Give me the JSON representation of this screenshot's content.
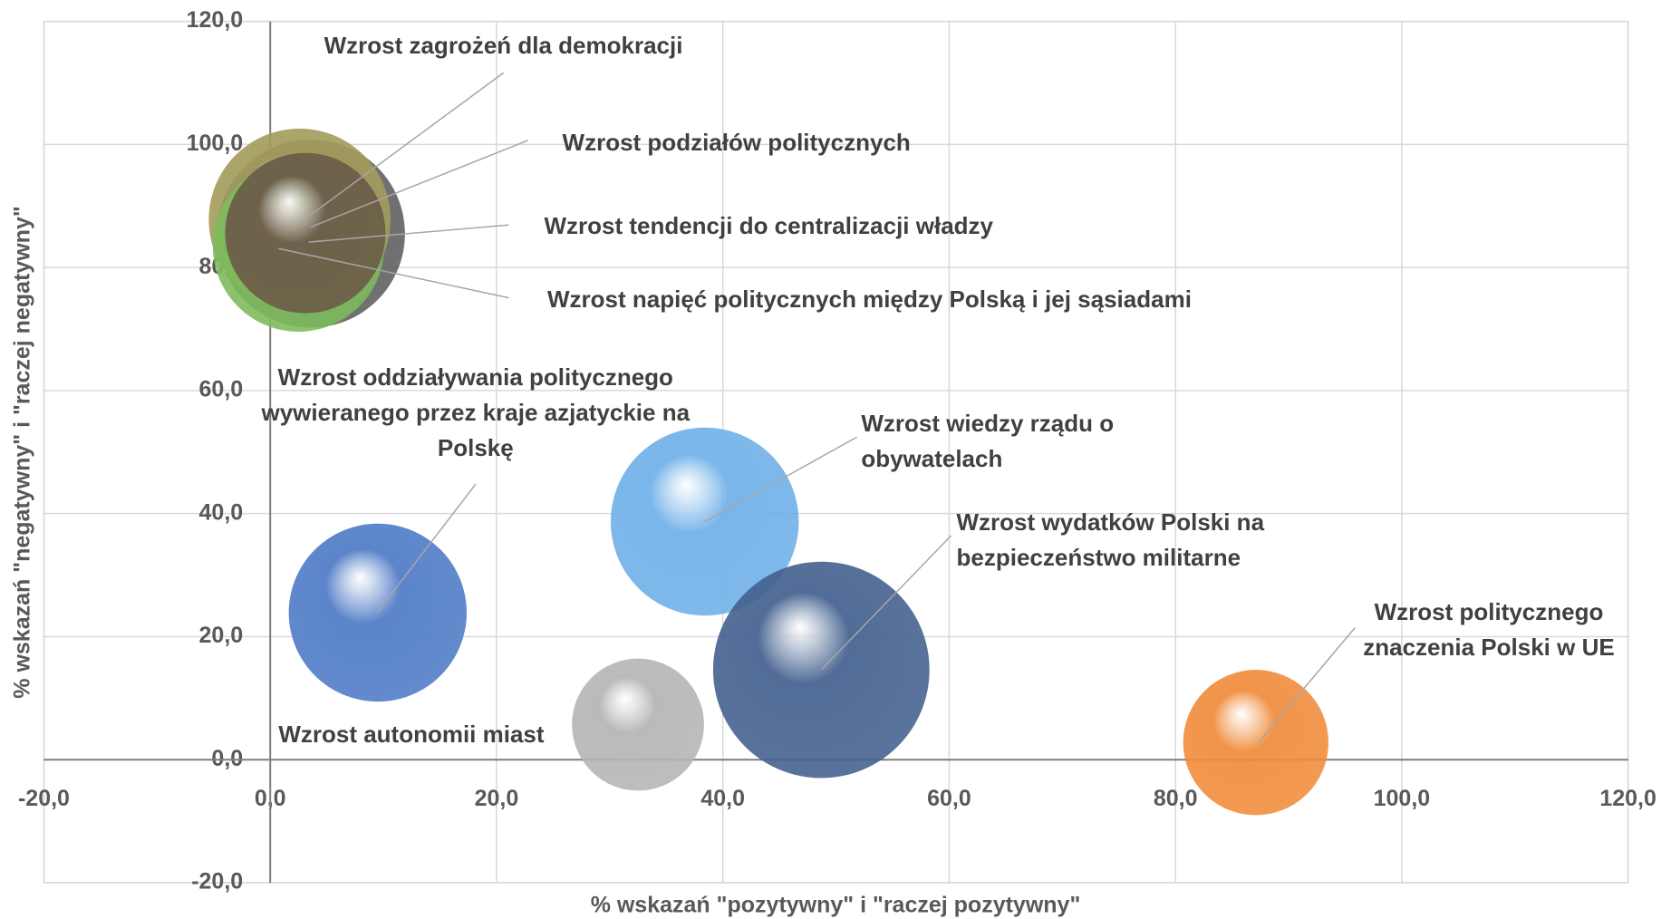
{
  "chart_data": {
    "type": "bubble",
    "xlabel": "% wskazań \"pozytywny\" i \"raczej pozytywny\"",
    "ylabel": "% wskazań \"negatywny\" i \"raczej negatywny\"",
    "xlim": [
      -20,
      120
    ],
    "ylim": [
      -20,
      120
    ],
    "xticks": [
      {
        "value": -20,
        "label": "-20,0"
      },
      {
        "value": 0,
        "label": "0,0"
      },
      {
        "value": 20,
        "label": "20,0"
      },
      {
        "value": 40,
        "label": "40,0"
      },
      {
        "value": 60,
        "label": "60,0"
      },
      {
        "value": 80,
        "label": "80,0"
      },
      {
        "value": 100,
        "label": "100,0"
      },
      {
        "value": 120,
        "label": "120,0"
      }
    ],
    "yticks": [
      {
        "value": -20,
        "label": "-20,0"
      },
      {
        "value": 0,
        "label": "0,0"
      },
      {
        "value": 20,
        "label": "20,0"
      },
      {
        "value": 40,
        "label": "40,0"
      },
      {
        "value": 60,
        "label": "60,0"
      },
      {
        "value": 80,
        "label": "80,0"
      },
      {
        "value": 100,
        "label": "100,0"
      },
      {
        "value": 120,
        "label": "120,0"
      }
    ],
    "grid": true,
    "series": [
      {
        "name": "Wzrost zagrożeń dla demokracji",
        "color": "#5f5f5f",
        "x": [
          3.6
        ],
        "values": [
          85.5
        ],
        "sizes": [
          77
        ]
      },
      {
        "name": "Wzrost podziałów politycznych",
        "color": "#a39c5c",
        "x": [
          2.6
        ],
        "values": [
          87.8
        ],
        "sizes": [
          72
        ]
      },
      {
        "name": "Wzrost tendencji do centralizacji władzy",
        "color": "#7dbb5c",
        "x": [
          2.5
        ],
        "values": [
          83.5
        ],
        "sizes": [
          64
        ]
      },
      {
        "name": "Wzrost napięć politycznych między Polską i jej sąsiadami",
        "color": "#6b5a48",
        "x": [
          3.1
        ],
        "values": [
          85.6
        ],
        "sizes": [
          56
        ]
      },
      {
        "name": "Wzrost oddziaływania politycznego wywieranego przez kraje azjatyckie na Polskę",
        "color": "#4f7bc6",
        "x": [
          9.5
        ],
        "values": [
          23.9
        ],
        "sizes": [
          69
        ]
      },
      {
        "name": "Wzrost wiedzy rządu o obywatelach",
        "color": "#6fb0e8",
        "x": [
          38.4
        ],
        "values": [
          38.7
        ],
        "sizes": [
          77
        ]
      },
      {
        "name": "Wzrost wydatków Polski na bezpieczeństwo militarne",
        "color": "#44618f",
        "x": [
          48.7
        ],
        "values": [
          14.6
        ],
        "sizes": [
          102
        ]
      },
      {
        "name": "Wzrost autonomii miast",
        "color": "#b5b5b5",
        "x": [
          32.5
        ],
        "values": [
          5.7
        ],
        "sizes": [
          38
        ]
      },
      {
        "name": "Wzrost politycznego znaczenia Polski w UE",
        "color": "#f08c3c",
        "x": [
          87.1
        ],
        "values": [
          2.8
        ],
        "sizes": [
          46
        ]
      }
    ]
  }
}
